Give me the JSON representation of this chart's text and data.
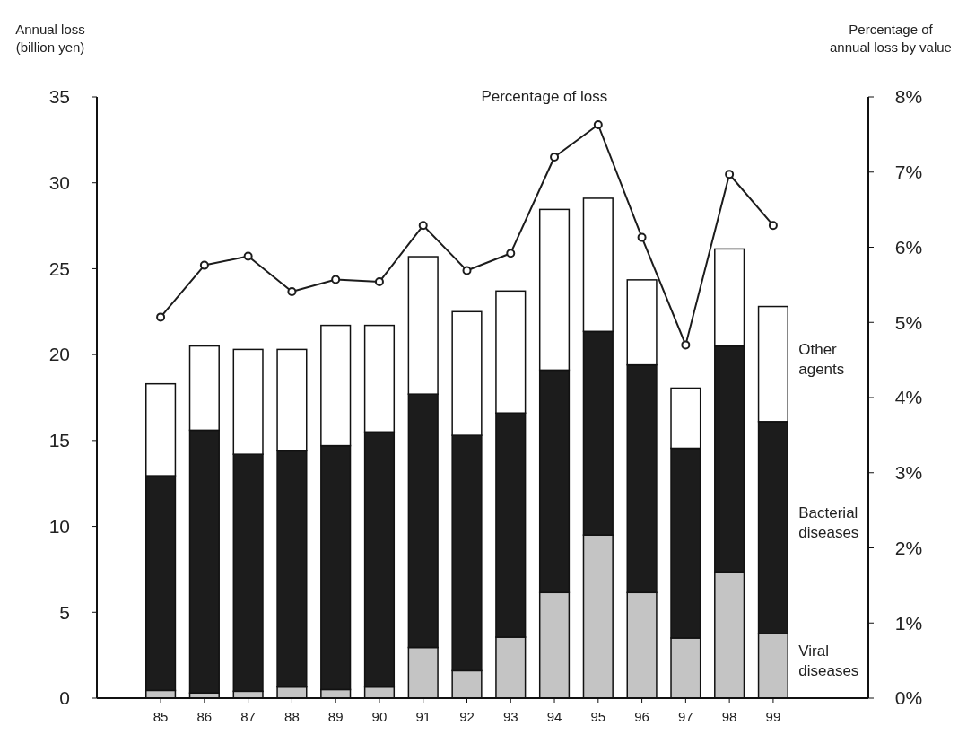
{
  "chart_data": {
    "type": "bar",
    "stacked": true,
    "ylabel": "Annual loss\n(billion yen)",
    "y2label": "Percentage of\nannual loss by value",
    "categories": [
      "85",
      "86",
      "87",
      "88",
      "89",
      "90",
      "91",
      "92",
      "93",
      "94",
      "95",
      "96",
      "97",
      "98",
      "99"
    ],
    "ylim": [
      0,
      35
    ],
    "yticks": [
      0,
      5,
      10,
      15,
      20,
      25,
      30,
      35
    ],
    "y2lim": [
      0,
      8
    ],
    "y2ticks": [
      {
        "value": 0,
        "label": "0%"
      },
      {
        "value": 1,
        "label": "1%"
      },
      {
        "value": 2,
        "label": "2%"
      },
      {
        "value": 3,
        "label": "3%"
      },
      {
        "value": 4,
        "label": "4%"
      },
      {
        "value": 5,
        "label": "5%"
      },
      {
        "value": 6,
        "label": "6%"
      },
      {
        "value": 7,
        "label": "7%"
      },
      {
        "value": 8,
        "label": "8%"
      }
    ],
    "grid": false,
    "marker": "circle",
    "line_style": "solid",
    "series": [
      {
        "name": "Viral diseases",
        "color": "#c4c4c4",
        "values": [
          0.45,
          0.3,
          0.4,
          0.65,
          0.5,
          0.65,
          2.95,
          1.6,
          3.55,
          6.15,
          9.5,
          6.15,
          3.5,
          7.35,
          3.75
        ]
      },
      {
        "name": "Bacterial diseases",
        "color": "#1c1c1c",
        "values": [
          12.5,
          15.3,
          13.8,
          13.75,
          14.2,
          14.85,
          14.75,
          13.7,
          13.05,
          12.95,
          11.85,
          13.25,
          11.05,
          13.15,
          12.35
        ]
      },
      {
        "name": "Other agents",
        "color": "#ffffff",
        "values": [
          5.35,
          4.9,
          6.1,
          5.9,
          7.0,
          6.2,
          8.0,
          7.2,
          7.1,
          9.35,
          7.75,
          4.95,
          3.5,
          5.65,
          6.7
        ]
      },
      {
        "name": "Percentage of loss",
        "type": "line",
        "axis": "y2",
        "color": "#1c1c1c",
        "values": [
          5.07,
          5.76,
          5.88,
          5.41,
          5.57,
          5.54,
          6.29,
          5.69,
          5.92,
          7.2,
          7.63,
          6.13,
          4.7,
          6.97,
          6.29
        ]
      }
    ]
  }
}
